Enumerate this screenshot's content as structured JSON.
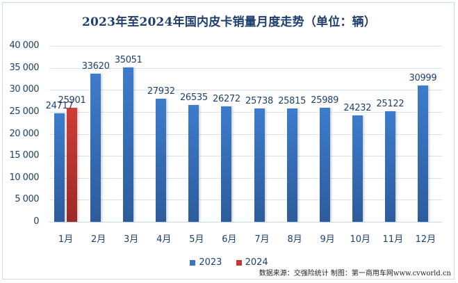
{
  "title": "2023年至2024年国内皮卡销量月度走势（单位：辆）",
  "chart_data": {
    "type": "bar",
    "title": "2023年至2024年国内皮卡销量月度走势（单位：辆）",
    "xlabel": "",
    "ylabel": "",
    "categories": [
      "1月",
      "2月",
      "3月",
      "4月",
      "5月",
      "6月",
      "7月",
      "8月",
      "9月",
      "10月",
      "11月",
      "12月"
    ],
    "series": [
      {
        "name": "2023",
        "color": "#3a74c4",
        "values": [
          24717,
          33620,
          35051,
          27932,
          26535,
          26272,
          25738,
          25815,
          25989,
          24232,
          25122,
          30999
        ]
      },
      {
        "name": "2024",
        "color": "#c23a35",
        "values": [
          25901,
          null,
          null,
          null,
          null,
          null,
          null,
          null,
          null,
          null,
          null,
          null
        ]
      }
    ],
    "ylim": [
      0,
      40000
    ],
    "yticks": [
      "0",
      "5000",
      "10000",
      "15000",
      "20000",
      "25000",
      "30000",
      "35000",
      "40000"
    ],
    "ytick_labels": [
      "0",
      "5 000",
      "10 000",
      "15 000",
      "20 000",
      "25 000",
      "30 000",
      "35 000",
      "40 000"
    ],
    "grid": true,
    "legend_position": "bottom",
    "data_labels": true
  },
  "legend": [
    {
      "label": "2023",
      "color": "#3a74c4"
    },
    {
      "label": "2024",
      "color": "#c23a35"
    }
  ],
  "source": "数据来源：交强险统计 制图：第一商用车网www.cvworld.cn"
}
